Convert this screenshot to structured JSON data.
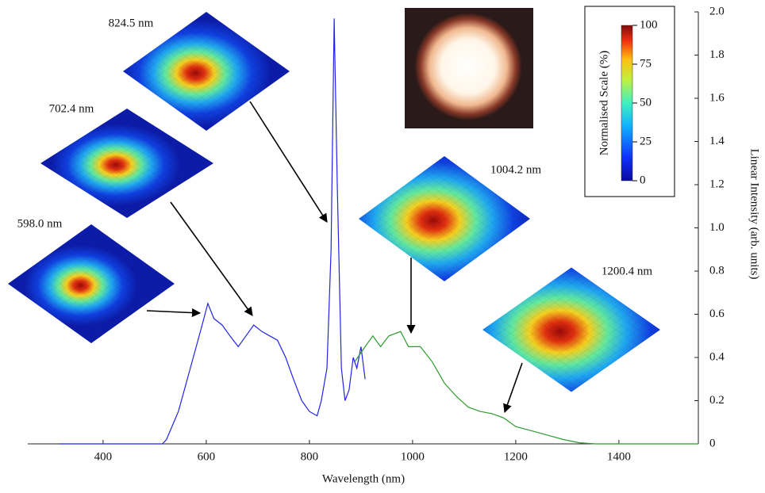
{
  "chart_data": {
    "type": "line",
    "x_label": "Wavelength  (nm)",
    "y_label": "Linear Intensity  (arb. units)",
    "xlim": [
      254,
      1554
    ],
    "ylim": [
      0,
      2
    ],
    "xticks": [
      400,
      600,
      800,
      1000,
      1200,
      1400
    ],
    "yticks": [
      0,
      0.2,
      0.4,
      0.6,
      0.8,
      {
        "value": 1,
        "label": "1.0"
      },
      1.2,
      1.4,
      1.6,
      1.8,
      {
        "value": 2,
        "label": "2.0"
      }
    ],
    "series": [
      {
        "color": "#2323e6",
        "x": [
          315,
          400,
          515,
          523,
          546,
          569,
          592,
          603,
          615,
          631,
          646,
          662,
          677,
          692,
          708,
          723,
          738,
          754,
          769,
          785,
          800,
          815,
          823,
          834,
          842,
          848,
          854,
          862,
          869,
          877,
          885,
          892,
          900,
          908
        ],
        "values": [
          0,
          0,
          0,
          0.02,
          0.15,
          0.35,
          0.55,
          0.65,
          0.58,
          0.55,
          0.5,
          0.45,
          0.5,
          0.55,
          0.52,
          0.5,
          0.48,
          0.4,
          0.3,
          0.2,
          0.15,
          0.13,
          0.2,
          0.35,
          0.9,
          1.97,
          1.2,
          0.35,
          0.2,
          0.25,
          0.4,
          0.35,
          0.45,
          0.3
        ]
      },
      {
        "color": "#2e9a2e",
        "x": [
          888,
          908,
          923,
          938,
          954,
          977,
          992,
          1015,
          1038,
          1062,
          1085,
          1108,
          1131,
          1154,
          1177,
          1200,
          1231,
          1262,
          1292,
          1323,
          1354,
          1554
        ],
        "values": [
          0.38,
          0.45,
          0.5,
          0.45,
          0.5,
          0.52,
          0.45,
          0.45,
          0.38,
          0.28,
          0.22,
          0.17,
          0.15,
          0.14,
          0.12,
          0.08,
          0.06,
          0.04,
          0.02,
          0.005,
          0,
          0
        ]
      }
    ],
    "annotations": [
      {
        "label": "598.0 nm"
      },
      {
        "label": "702.4 nm"
      },
      {
        "label": "824.5 nm"
      },
      {
        "label": "1004.2 nm"
      },
      {
        "label": "1200.4 nm"
      }
    ],
    "colorbar": {
      "title": "Normalised  Scale  (%)",
      "lim": [
        0,
        100
      ],
      "ticks": [
        0,
        25,
        50,
        75,
        100
      ]
    }
  }
}
